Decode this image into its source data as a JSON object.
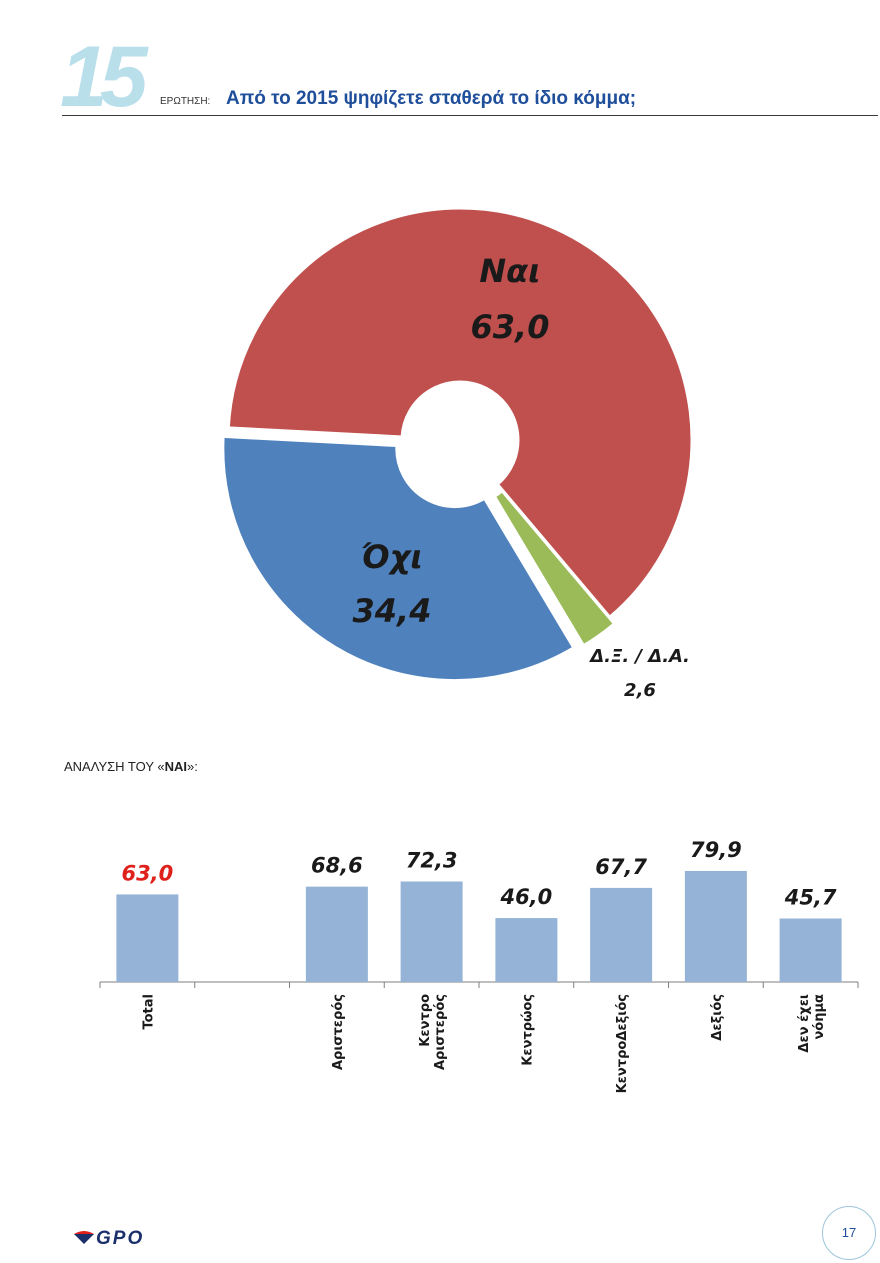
{
  "header": {
    "number": "15",
    "label": "ΕΡΩΤΗΣΗ:",
    "title": "Από το 2015 ψηφίζετε σταθερά το ίδιο κόμμα;"
  },
  "analysis": {
    "prefix": "ΑΝΑΛΥΣΗ ΤΟΥ «",
    "bold": "ΝΑΙ",
    "suffix": "»:"
  },
  "chart_data": [
    {
      "type": "pie",
      "title": "",
      "slices": [
        {
          "label": "Ναι",
          "value": 63.0,
          "value_label": "63,0",
          "color": "#c0504d"
        },
        {
          "label": "Δ.Ξ. / Δ.Α.",
          "value": 2.6,
          "value_label": "2,6",
          "color": "#9bbb59"
        },
        {
          "label": "Όχι",
          "value": 34.4,
          "value_label": "34,4",
          "color": "#4f81bd"
        }
      ]
    },
    {
      "type": "bar",
      "title": "",
      "categories": [
        "Total",
        "",
        "Αριστερός",
        "Κεντρο Αριστερός",
        "Κεντρώος",
        "ΚεντροΔεξιός",
        "Δεξιός",
        "Δεν έχει νόημα"
      ],
      "category_lines": [
        [
          "Total"
        ],
        [],
        [
          "Αριστερός"
        ],
        [
          "Κεντρο",
          "Αριστερός"
        ],
        [
          "Κεντρώος"
        ],
        [
          "ΚεντροΔεξιός"
        ],
        [
          "Δεξιός"
        ],
        [
          "Δεν έχει",
          "νόημα"
        ]
      ],
      "values": [
        63.0,
        null,
        68.6,
        72.3,
        46.0,
        67.7,
        79.9,
        45.7
      ],
      "value_labels": [
        "63,0",
        "",
        "68,6",
        "72,3",
        "46,0",
        "67,7",
        "79,9",
        "45,7"
      ],
      "bar_color": "#95b3d7",
      "highlight_label_color": "#e0201b",
      "ylim": [
        0,
        100
      ]
    }
  ],
  "footer": {
    "logo": "GPO",
    "page": "17"
  }
}
